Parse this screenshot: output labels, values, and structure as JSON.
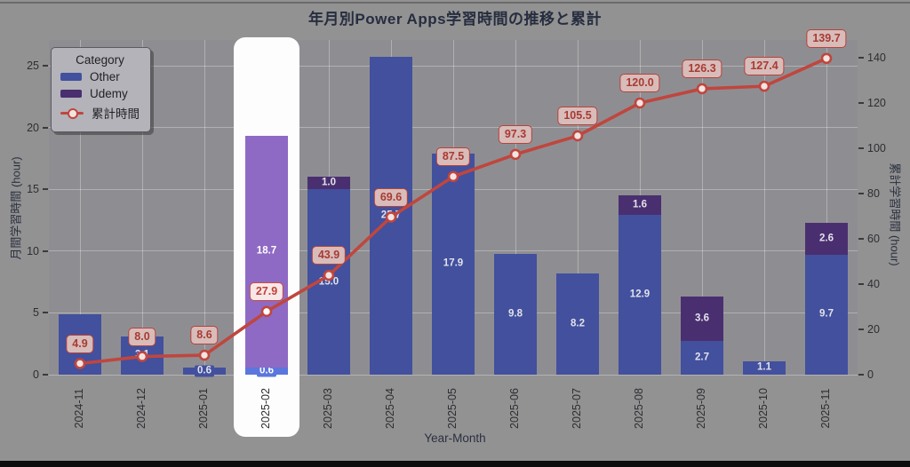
{
  "chart_data": {
    "type": "bar+line",
    "title": "年月別Power Apps学習時間の推移と累計",
    "xlabel": "Year-Month",
    "ylabel_left": "月間学習時間 (hour)",
    "ylabel_right": "累計学習時間 (hour)",
    "categories": [
      "2024-11",
      "2024-12",
      "2025-01",
      "2025-02",
      "2025-03",
      "2025-04",
      "2025-05",
      "2025-06",
      "2025-07",
      "2025-08",
      "2025-09",
      "2025-10",
      "2025-11"
    ],
    "series": [
      {
        "name": "Other",
        "values": [
          4.9,
          3.1,
          0.6,
          0.6,
          15.0,
          25.7,
          17.9,
          9.8,
          8.2,
          12.9,
          2.7,
          1.1,
          9.7
        ]
      },
      {
        "name": "Udemy",
        "values": [
          0,
          0,
          0,
          18.7,
          1.0,
          0,
          0,
          0,
          0,
          1.6,
          3.6,
          0,
          2.6
        ]
      }
    ],
    "line_series": {
      "name": "累計時間",
      "values": [
        4.9,
        8.0,
        8.6,
        27.9,
        43.9,
        69.6,
        87.5,
        97.3,
        105.5,
        120.0,
        126.3,
        127.4,
        139.7
      ]
    },
    "left_axis": {
      "ticks": [
        0,
        5,
        10,
        15,
        20,
        25
      ],
      "range": [
        0,
        27.1
      ]
    },
    "right_axis": {
      "ticks": [
        0,
        20,
        40,
        60,
        80,
        100,
        120,
        140
      ],
      "range": [
        0,
        147.8
      ]
    },
    "grid": true,
    "highlight_category": "2025-02",
    "highlight_index": 3,
    "legend": {
      "position": "upper-left",
      "title": "Category",
      "items": [
        {
          "label": "Other",
          "type": "swatch",
          "color": "#42509e"
        },
        {
          "label": "Udemy",
          "type": "swatch",
          "color": "#4a2f70"
        },
        {
          "label": "累計時間",
          "type": "line",
          "color": "#c0463e"
        }
      ]
    },
    "colors": {
      "bar_other": "#42509e",
      "bar_udemy": "#4a2f70",
      "bar_other_highlight": "#5b76dd",
      "bar_udemy_highlight": "#8e6ac4",
      "line": "#c0463e",
      "marker_fill": "#f2e4e2",
      "badge_bg": "#d8bcba",
      "badge_border": "#b8423a",
      "highlight_bg": "#fdfdfd",
      "page_bg": "#929292",
      "plot_bg": "#8e8e92"
    }
  }
}
